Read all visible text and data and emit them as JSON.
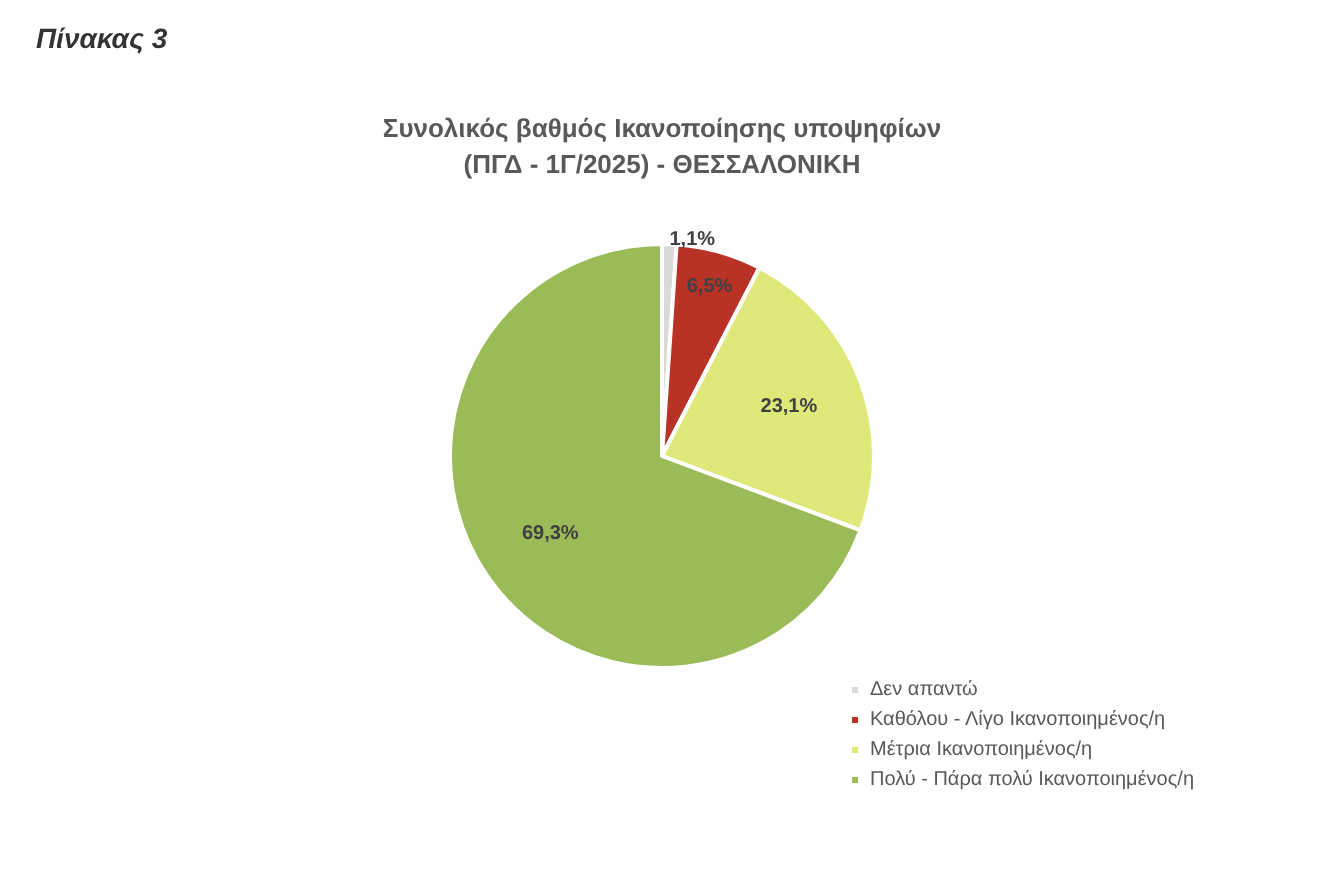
{
  "chart_data": {
    "type": "pie",
    "title": "Συνολικός βαθμός Ικανοποίησης υποψηφίων\n(ΠΓΔ - 1Γ/2025) - ΘΕΣΣΑΛΟΝΙΚΗ",
    "annotations": [
      "Πίνακας 3"
    ],
    "categories": [
      "Δεν απαντώ",
      "Καθόλου - Λίγο Ικανοποιημένος/η",
      "Μέτρια Ικανοποιημένος/η",
      "Πολύ - Πάρα πολύ Ικανοποιημένος/η"
    ],
    "values": [
      1.1,
      6.5,
      23.1,
      69.3
    ],
    "value_labels": [
      "1,1%",
      "6,5%",
      "23,1%",
      "69,3%"
    ],
    "colors": [
      "#d9d9d9",
      "#b83225",
      "#dfe97a",
      "#9bbb59"
    ],
    "legend": "bottom right"
  }
}
